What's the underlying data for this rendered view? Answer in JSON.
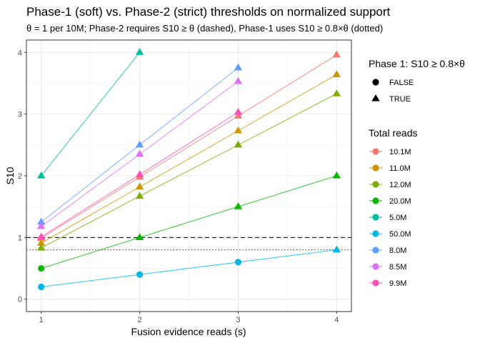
{
  "chart_data": {
    "type": "scatter",
    "title": "Phase-1 (soft) vs. Phase-2 (strict) thresholds on normalized support",
    "subtitle": "θ = 1 per 10M; Phase-2 requires S10 ≥ θ (dashed), Phase-1 uses S10 ≥ 0.8×θ (dotted)",
    "xlabel": "Fusion evidence reads (s)",
    "ylabel": "S10",
    "x_ticks": [
      1,
      2,
      3,
      4
    ],
    "y_ticks": [
      0,
      1,
      2,
      3,
      4
    ],
    "xlim": [
      0.85,
      4.15
    ],
    "ylim": [
      -0.2,
      4.2
    ],
    "grid": true,
    "legend_position": "right",
    "reference_lines": [
      {
        "y": 1.0,
        "style": "dashed"
      },
      {
        "y": 0.8,
        "style": "dotted"
      }
    ],
    "shape_legend": {
      "title": "Phase 1: S10 ≥ 0.8×θ",
      "entries": [
        {
          "label": "FALSE",
          "shape": "circle"
        },
        {
          "label": "TRUE",
          "shape": "triangle"
        }
      ]
    },
    "color_legend_title": "Total reads",
    "series": [
      {
        "name": "10.1M",
        "color": "#F8766D",
        "x": [
          1,
          2,
          3,
          4
        ],
        "y": [
          0.99,
          1.98,
          2.97,
          3.96
        ]
      },
      {
        "name": "11.0M",
        "color": "#CD9600",
        "x": [
          1,
          2,
          3,
          4
        ],
        "y": [
          0.91,
          1.82,
          2.73,
          3.64
        ]
      },
      {
        "name": "12.0M",
        "color": "#7CAE00",
        "x": [
          1,
          2,
          3,
          4
        ],
        "y": [
          0.83,
          1.67,
          2.5,
          3.33
        ]
      },
      {
        "name": "20.0M",
        "color": "#0CB702",
        "x": [
          1,
          2,
          3,
          4
        ],
        "y": [
          0.5,
          1.0,
          1.5,
          2.0
        ]
      },
      {
        "name": "5.0M",
        "color": "#00BE9C",
        "x": [
          1,
          2
        ],
        "y": [
          2.0,
          4.0
        ]
      },
      {
        "name": "50.0M",
        "color": "#00B8E5",
        "x": [
          1,
          2,
          3,
          4
        ],
        "y": [
          0.2,
          0.4,
          0.6,
          0.8
        ]
      },
      {
        "name": "8.0M",
        "color": "#619CFF",
        "x": [
          1,
          2,
          3
        ],
        "y": [
          1.25,
          2.5,
          3.75
        ]
      },
      {
        "name": "8.5M",
        "color": "#DE6FF6",
        "x": [
          1,
          2,
          3
        ],
        "y": [
          1.18,
          2.35,
          3.53
        ]
      },
      {
        "name": "9.9M",
        "color": "#FF4FB7",
        "x": [
          1,
          2,
          3
        ],
        "y": [
          1.01,
          2.02,
          3.03
        ]
      }
    ]
  }
}
